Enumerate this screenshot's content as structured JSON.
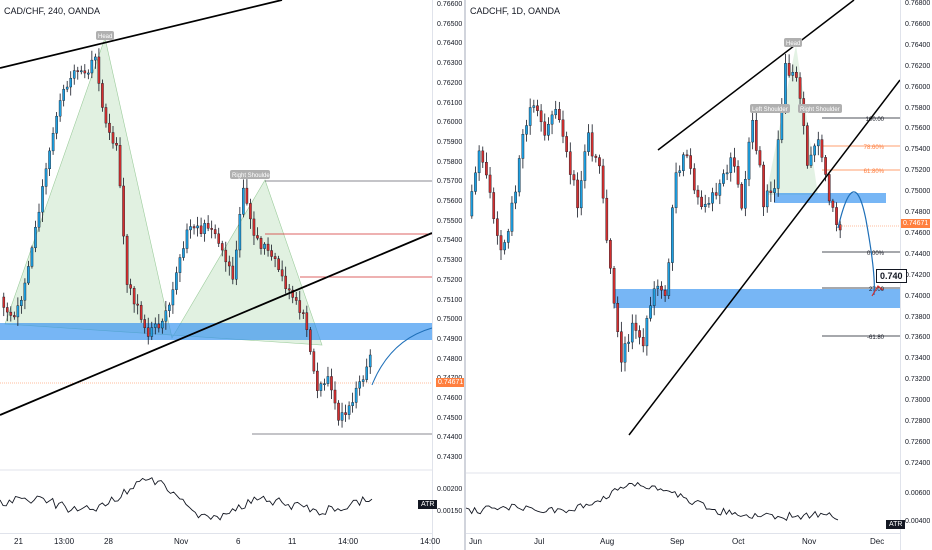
{
  "colors": {
    "up": "#26a69a",
    "upbody": "#1e9fe0",
    "down": "#d32f2f",
    "zone": "#2e8ff0",
    "pattern": "#c8e6c9",
    "orange": "#ff7f3f",
    "line": "#131722"
  },
  "left": {
    "title": "CAD/CHF, 240, OANDA",
    "labels": {
      "head": "Head",
      "right_shoulder": "Right Shoulder"
    },
    "price_ticks": [
      "0.76600",
      "0.76500",
      "0.76400",
      "0.76300",
      "0.76200",
      "0.76100",
      "0.76000",
      "0.75900",
      "0.75800",
      "0.75700",
      "0.75600",
      "0.75500",
      "0.75400",
      "0.75300",
      "0.75200",
      "0.75100",
      "0.75000",
      "0.74900",
      "0.74800",
      "0.74700",
      "0.74600",
      "0.74500",
      "0.74400",
      "0.74300"
    ],
    "current_price": "0.74671",
    "atr_label": "ATR",
    "atr_ticks": [
      "0.00200",
      "0.00150"
    ],
    "time_labels": [
      "21",
      "13:00",
      "28",
      "Nov",
      "6",
      "11",
      "14:00",
      "14:00"
    ]
  },
  "right": {
    "title": "CADCHF, 1D, OANDA",
    "labels": {
      "head": "Head",
      "left_shoulder": "Left Shoulder",
      "right_shoulder": "Right Shoulder"
    },
    "fib_labels": {
      "f100": "100.00",
      "f786": "78.60%",
      "f618": "61.80%",
      "f0": "0.00%",
      "f27": "27.00",
      "fm618": "-61.80"
    },
    "price_ticks": [
      "0.76800",
      "0.76600",
      "0.76400",
      "0.76200",
      "0.76000",
      "0.75800",
      "0.75600",
      "0.75400",
      "0.75200",
      "0.75000",
      "0.74800",
      "0.74600",
      "0.74400",
      "0.74200",
      "0.74000",
      "0.73800",
      "0.73600",
      "0.73400",
      "0.73200",
      "0.73000",
      "0.72800",
      "0.72600",
      "0.72400"
    ],
    "current_price": "0.74671",
    "target_tag": "0.740",
    "atr_label": "ATR",
    "atr_ticks": [
      "0.00600",
      "0.00400"
    ],
    "time_labels": [
      "Jun",
      "Jul",
      "Aug",
      "Sep",
      "Oct",
      "Nov",
      "Dec"
    ]
  },
  "chart_data": [
    {
      "type": "candlestick",
      "title": "CAD/CHF, 240, OANDA",
      "ylim": [
        0.7425,
        0.7665
      ],
      "x": [
        "21",
        "13:00",
        "28",
        "Nov",
        "6",
        "11",
        "14:00"
      ],
      "annotations": [
        "Head",
        "Right Shoulder",
        "ATR"
      ],
      "current_price": 0.74671,
      "support_zone": [
        0.749,
        0.7496
      ],
      "atr_range": [
        0.0015,
        0.002
      ]
    },
    {
      "type": "candlestick",
      "title": "CADCHF, 1D, OANDA",
      "ylim": [
        0.7225,
        0.7685
      ],
      "x": [
        "Jun",
        "Jul",
        "Aug",
        "Sep",
        "Oct",
        "Nov",
        "Dec"
      ],
      "annotations": [
        "Head",
        "Left Shoulder",
        "Right Shoulder",
        "ATR"
      ],
      "fibonacci": [
        {
          "level": "100.00",
          "price": 0.757
        },
        {
          "level": "78.60%",
          "price": 0.754
        },
        {
          "level": "61.80%",
          "price": 0.752
        },
        {
          "level": "0.00%",
          "price": 0.744
        },
        {
          "level": "27.00",
          "price": 0.7403
        },
        {
          "level": "-61.80",
          "price": 0.736
        }
      ],
      "current_price": 0.74671,
      "target_price": 0.74,
      "support_zones": [
        [
          0.749,
          0.7498
        ],
        [
          0.7388,
          0.7405
        ]
      ],
      "atr_range": [
        0.004,
        0.006
      ]
    }
  ]
}
